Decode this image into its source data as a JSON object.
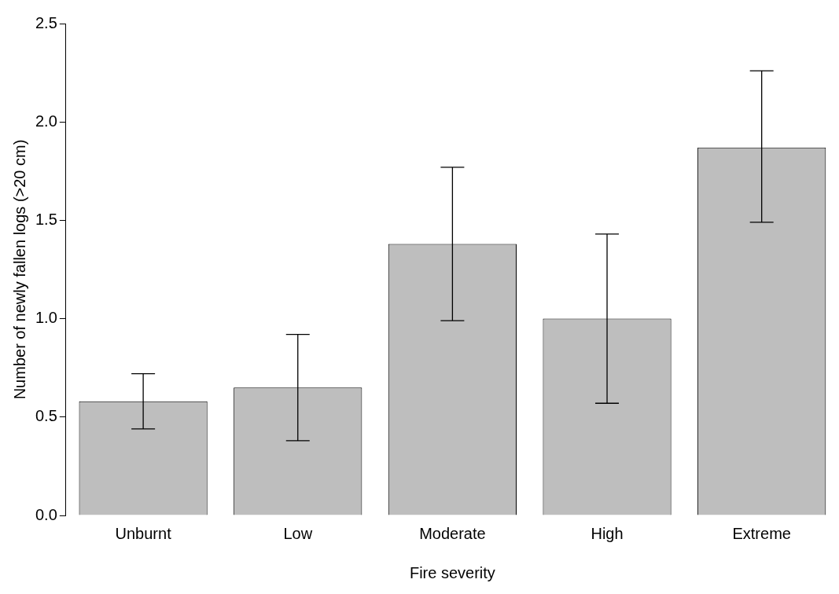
{
  "chart_data": {
    "type": "bar",
    "xlabel": "Fire severity",
    "ylabel": "Number of newly fallen logs (>20 cm)",
    "categories": [
      "Unburnt",
      "Low",
      "Moderate",
      "High",
      "Extreme"
    ],
    "values": [
      0.58,
      0.65,
      1.38,
      1.0,
      1.87
    ],
    "errors": [
      [
        0.44,
        0.72
      ],
      [
        0.38,
        0.92
      ],
      [
        0.99,
        1.77
      ],
      [
        0.57,
        1.43
      ],
      [
        1.49,
        2.26
      ]
    ],
    "color": "#bebebe",
    "ylim": [
      0,
      2.5
    ],
    "yticks": [
      {
        "value": 0,
        "label": "0.0"
      },
      {
        "value": 0.5,
        "label": "0.5"
      },
      {
        "value": 1,
        "label": "1.0"
      },
      {
        "value": 1.5,
        "label": "1.5"
      },
      {
        "value": 2,
        "label": "2.0"
      },
      {
        "value": 2.5,
        "label": "2.5"
      }
    ],
    "grid": false,
    "legend": false
  }
}
